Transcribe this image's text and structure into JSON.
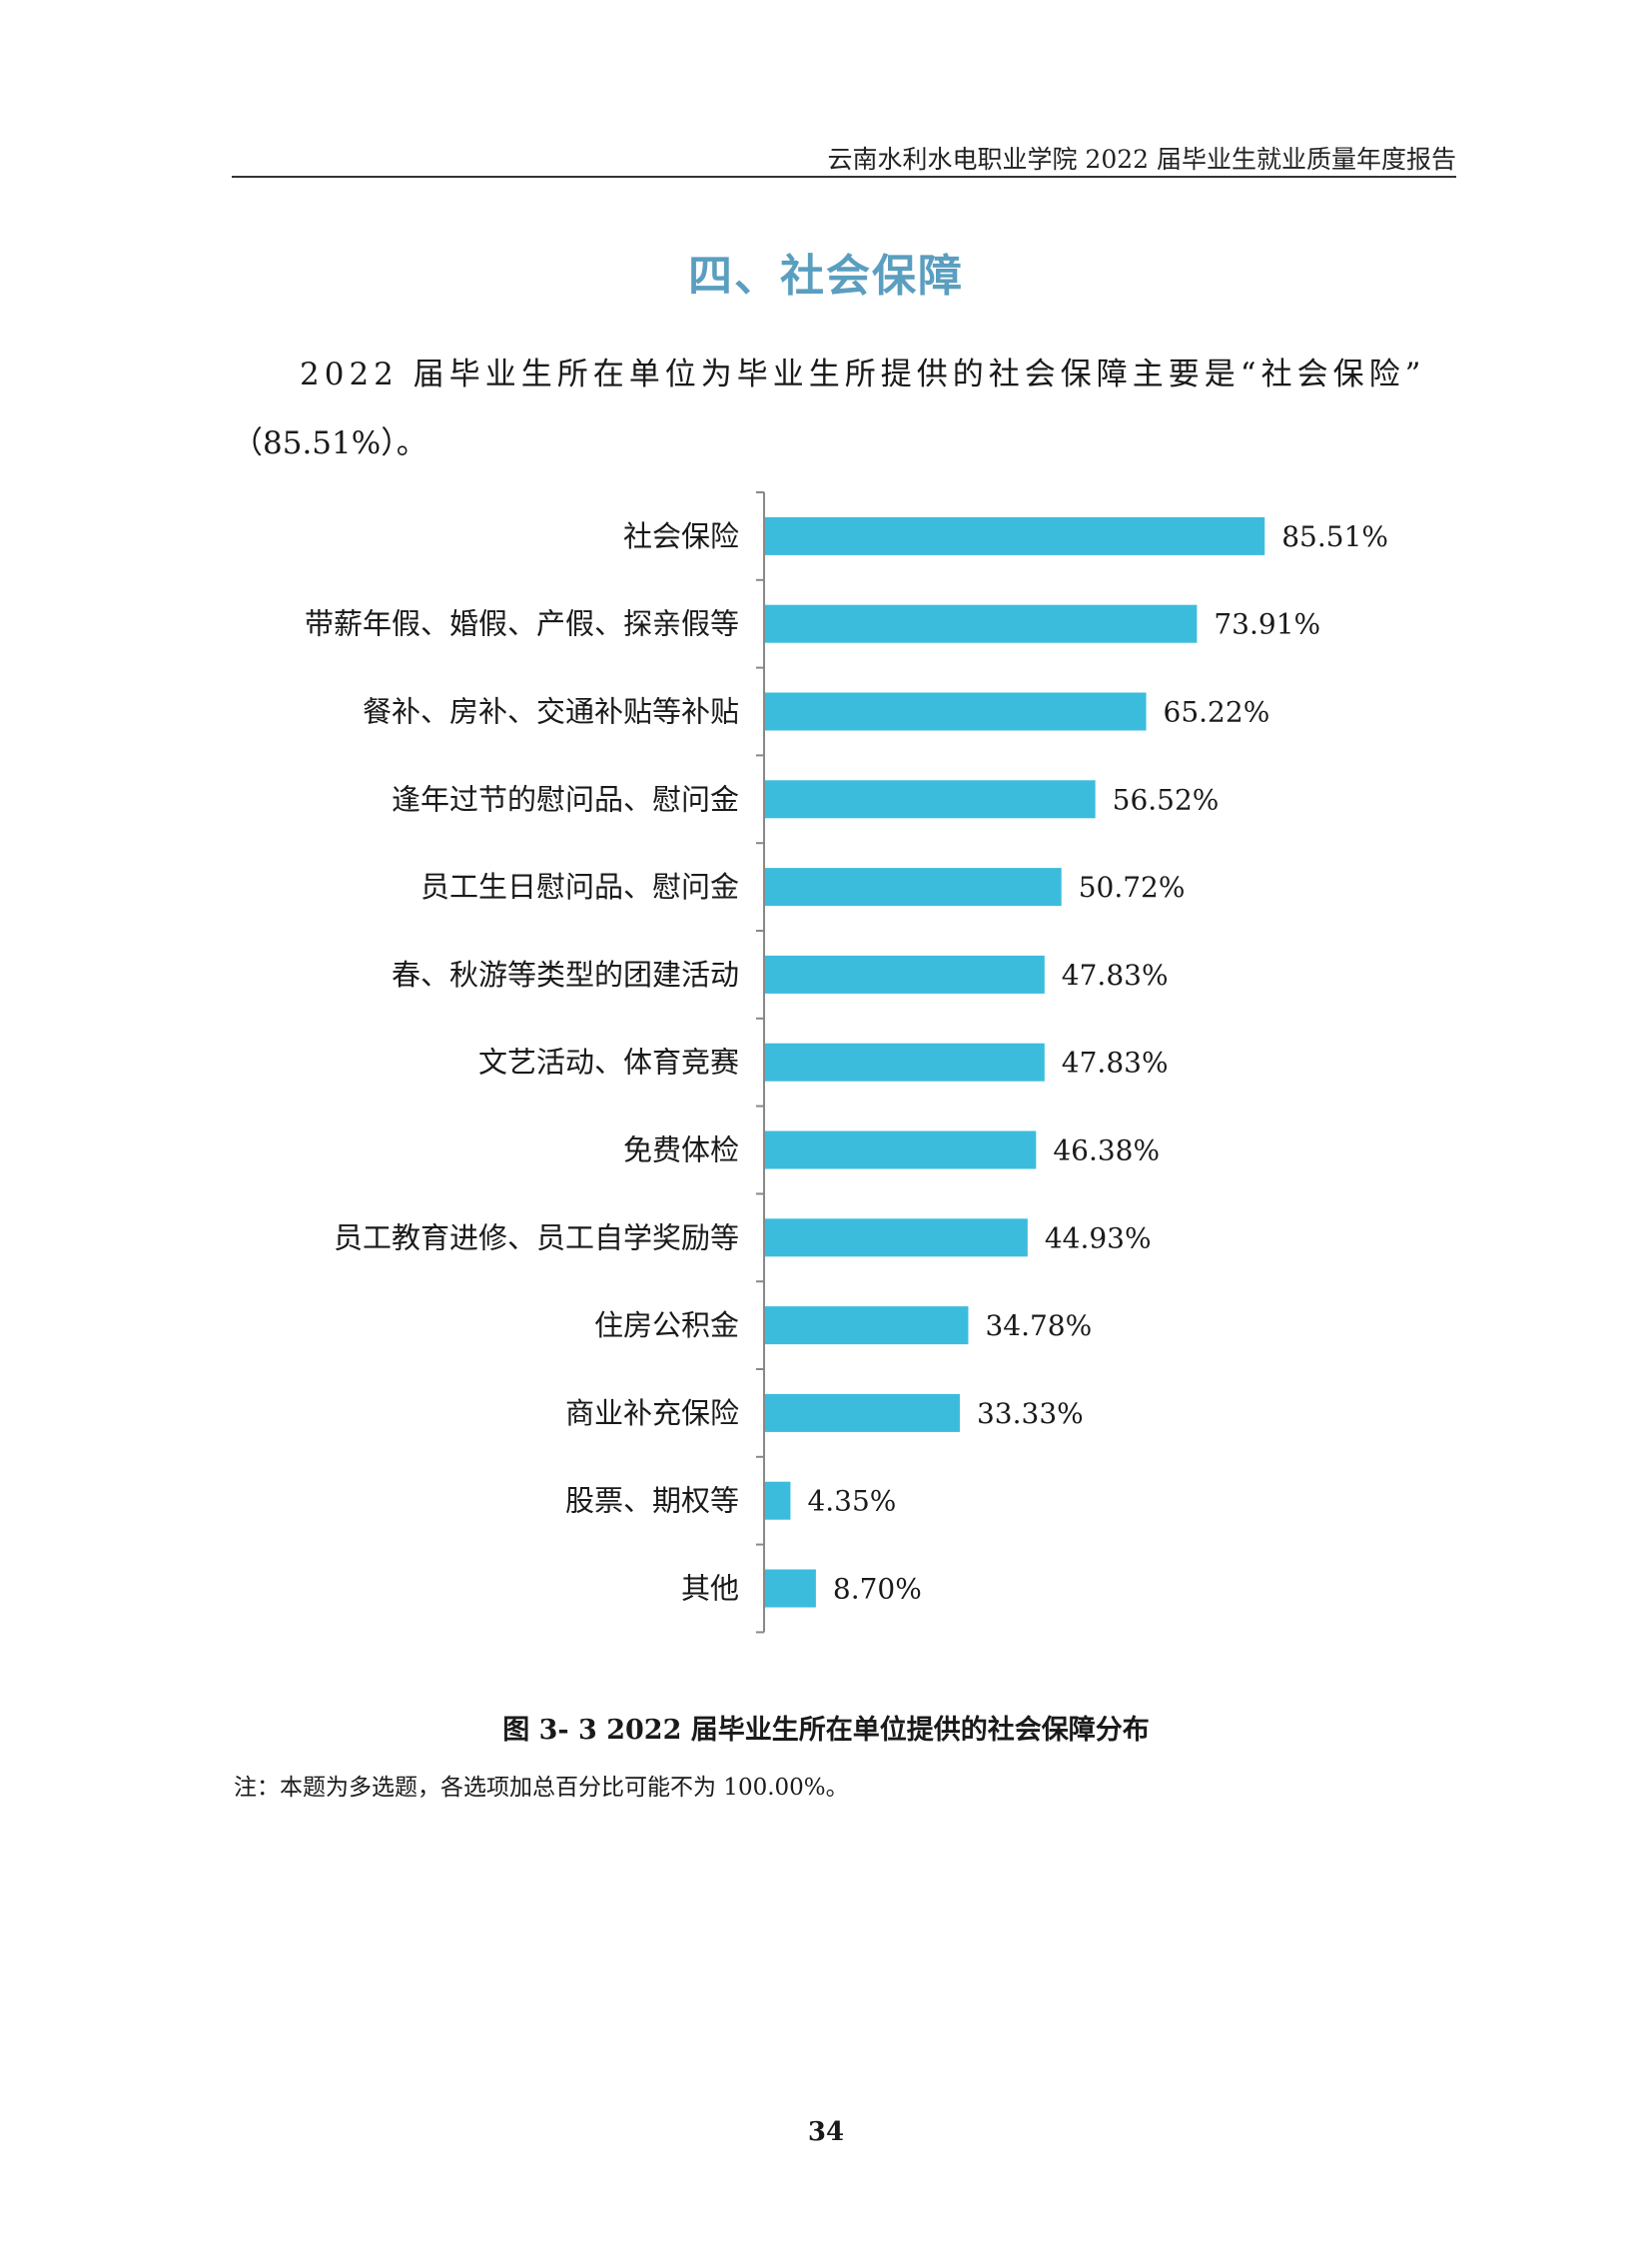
{
  "header": {
    "running_title": "云南水利水电职业学院 2022 届毕业生就业质量年度报告"
  },
  "section": {
    "title": "四、社会保障"
  },
  "body": {
    "paragraph_line1": "2022 届毕业生所在单位为毕业生所提供的社会保障主要是“社会保险”",
    "paragraph_line2": "（85.51%）。"
  },
  "figure": {
    "caption": "图 3- 3    2022 届毕业生所在单位提供的社会保障分布",
    "note": "注：本题为多选题，各选项加总百分比可能不为 100.00%。"
  },
  "footer": {
    "page_number": "34"
  },
  "chart_data": {
    "type": "bar",
    "orientation": "horizontal",
    "bar_color": "#3bbcdd",
    "categories": [
      "社会保险",
      "带薪年假、婚假、产假、探亲假等",
      "餐补、房补、交通补贴等补贴",
      "逢年过节的慰问品、慰问金",
      "员工生日慰问品、慰问金",
      "春、秋游等类型的团建活动",
      "文艺活动、体育竞赛",
      "免费体检",
      "员工教育进修、员工自学奖励等",
      "住房公积金",
      "商业补充保险",
      "股票、期权等",
      "其他"
    ],
    "values": [
      85.51,
      73.91,
      65.22,
      56.52,
      50.72,
      47.83,
      47.83,
      46.38,
      44.93,
      34.78,
      33.33,
      4.35,
      8.7
    ],
    "value_labels": [
      "85.51%",
      "73.91%",
      "65.22%",
      "56.52%",
      "50.72%",
      "47.83%",
      "47.83%",
      "46.38%",
      "44.93%",
      "34.78%",
      "33.33%",
      "4.35%",
      "8.70%"
    ],
    "xlim": [
      0,
      100
    ]
  }
}
